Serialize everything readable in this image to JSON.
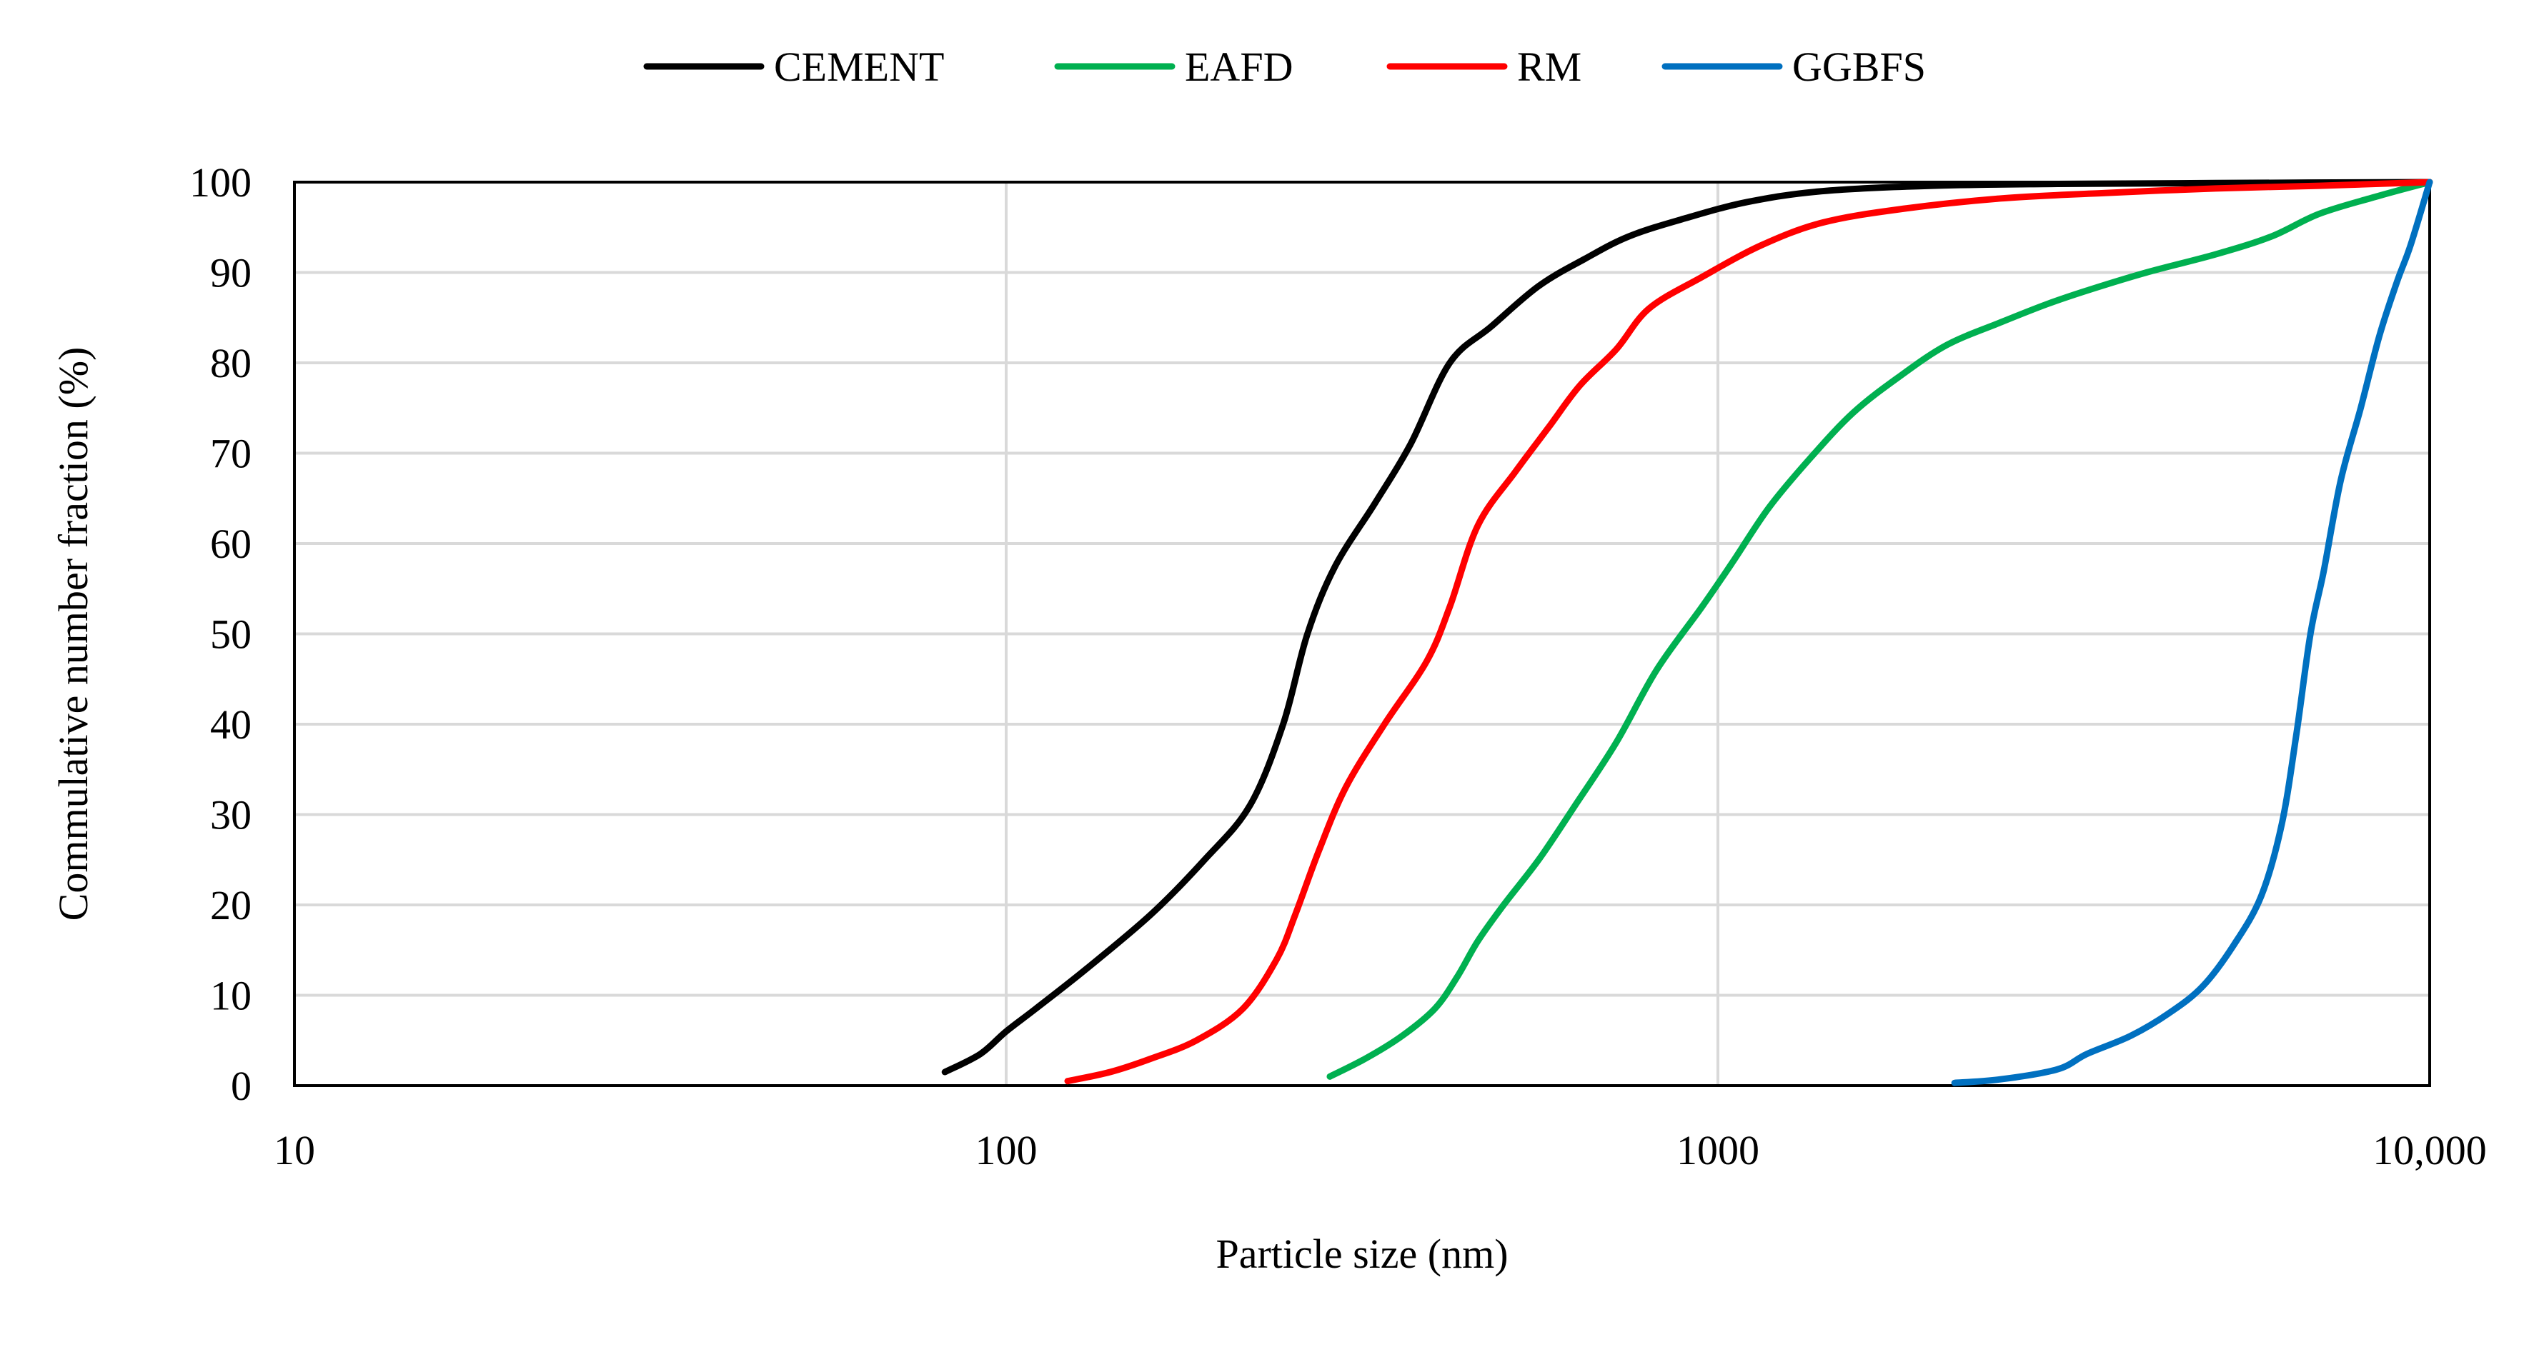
{
  "chart_data": {
    "type": "line",
    "title": "",
    "xlabel": "Particle size (nm)",
    "ylabel": "Commulative number fraction (%)",
    "x_scale": "log",
    "xlim": [
      10,
      10000
    ],
    "ylim": [
      0,
      100
    ],
    "x_ticks": [
      {
        "value": 10,
        "label": "10"
      },
      {
        "value": 100,
        "label": "100"
      },
      {
        "value": 1000,
        "label": "1000"
      },
      {
        "value": 10000,
        "label": "10,000"
      }
    ],
    "y_ticks": [
      0,
      10,
      20,
      30,
      40,
      50,
      60,
      70,
      80,
      90,
      100
    ],
    "grid": true,
    "legend_position": "top",
    "series": [
      {
        "name": "CEMENT",
        "color": "#000000",
        "points": [
          [
            82,
            1.5
          ],
          [
            92,
            3.5
          ],
          [
            100,
            6
          ],
          [
            110,
            8.5
          ],
          [
            130,
            13
          ],
          [
            160,
            19
          ],
          [
            190,
            25
          ],
          [
            220,
            31
          ],
          [
            245,
            40
          ],
          [
            265,
            50
          ],
          [
            290,
            57.5
          ],
          [
            330,
            64.5
          ],
          [
            370,
            71
          ],
          [
            420,
            80
          ],
          [
            480,
            84
          ],
          [
            560,
            88.5
          ],
          [
            650,
            91.5
          ],
          [
            750,
            94
          ],
          [
            900,
            96
          ],
          [
            1100,
            97.8
          ],
          [
            1400,
            99
          ],
          [
            2000,
            99.6
          ],
          [
            3000,
            99.8
          ],
          [
            5000,
            99.9
          ],
          [
            10000,
            100
          ]
        ]
      },
      {
        "name": "EAFD",
        "color": "#00b050",
        "points": [
          [
            285,
            1
          ],
          [
            320,
            3
          ],
          [
            360,
            5.5
          ],
          [
            400,
            8.5
          ],
          [
            430,
            12
          ],
          [
            460,
            16
          ],
          [
            500,
            20
          ],
          [
            560,
            25
          ],
          [
            630,
            31
          ],
          [
            720,
            38
          ],
          [
            820,
            46
          ],
          [
            950,
            53
          ],
          [
            1050,
            58
          ],
          [
            1180,
            64
          ],
          [
            1350,
            69.5
          ],
          [
            1550,
            74.5
          ],
          [
            1800,
            78.5
          ],
          [
            2100,
            82
          ],
          [
            2500,
            84.5
          ],
          [
            2900,
            86.5
          ],
          [
            3300,
            88
          ],
          [
            4000,
            90
          ],
          [
            5000,
            92
          ],
          [
            6000,
            94
          ],
          [
            7000,
            96.5
          ],
          [
            8500,
            98.5
          ],
          [
            10000,
            100
          ]
        ]
      },
      {
        "name": "RM",
        "color": "#ff0000",
        "points": [
          [
            122,
            0.5
          ],
          [
            140,
            1.5
          ],
          [
            160,
            3
          ],
          [
            185,
            5
          ],
          [
            215,
            8.5
          ],
          [
            240,
            14
          ],
          [
            255,
            19
          ],
          [
            275,
            26
          ],
          [
            300,
            33
          ],
          [
            340,
            40
          ],
          [
            390,
            47
          ],
          [
            420,
            53
          ],
          [
            460,
            62
          ],
          [
            520,
            68
          ],
          [
            580,
            73
          ],
          [
            640,
            77.5
          ],
          [
            720,
            81.5
          ],
          [
            800,
            86
          ],
          [
            950,
            89.5
          ],
          [
            1150,
            93
          ],
          [
            1400,
            95.5
          ],
          [
            1800,
            97
          ],
          [
            2500,
            98.2
          ],
          [
            3500,
            98.8
          ],
          [
            5000,
            99.3
          ],
          [
            7000,
            99.6
          ],
          [
            10000,
            100
          ]
        ]
      },
      {
        "name": "GGBFS",
        "color": "#0070c0",
        "points": [
          [
            2150,
            0.3
          ],
          [
            2500,
            0.7
          ],
          [
            3000,
            1.8
          ],
          [
            3300,
            3.5
          ],
          [
            3800,
            5.5
          ],
          [
            4300,
            8
          ],
          [
            4800,
            11
          ],
          [
            5300,
            15.5
          ],
          [
            5800,
            21
          ],
          [
            6200,
            29
          ],
          [
            6500,
            39
          ],
          [
            6800,
            50
          ],
          [
            7100,
            57
          ],
          [
            7500,
            67
          ],
          [
            8000,
            75
          ],
          [
            8500,
            83
          ],
          [
            9000,
            89
          ],
          [
            9400,
            93
          ],
          [
            10000,
            100
          ]
        ]
      }
    ]
  }
}
